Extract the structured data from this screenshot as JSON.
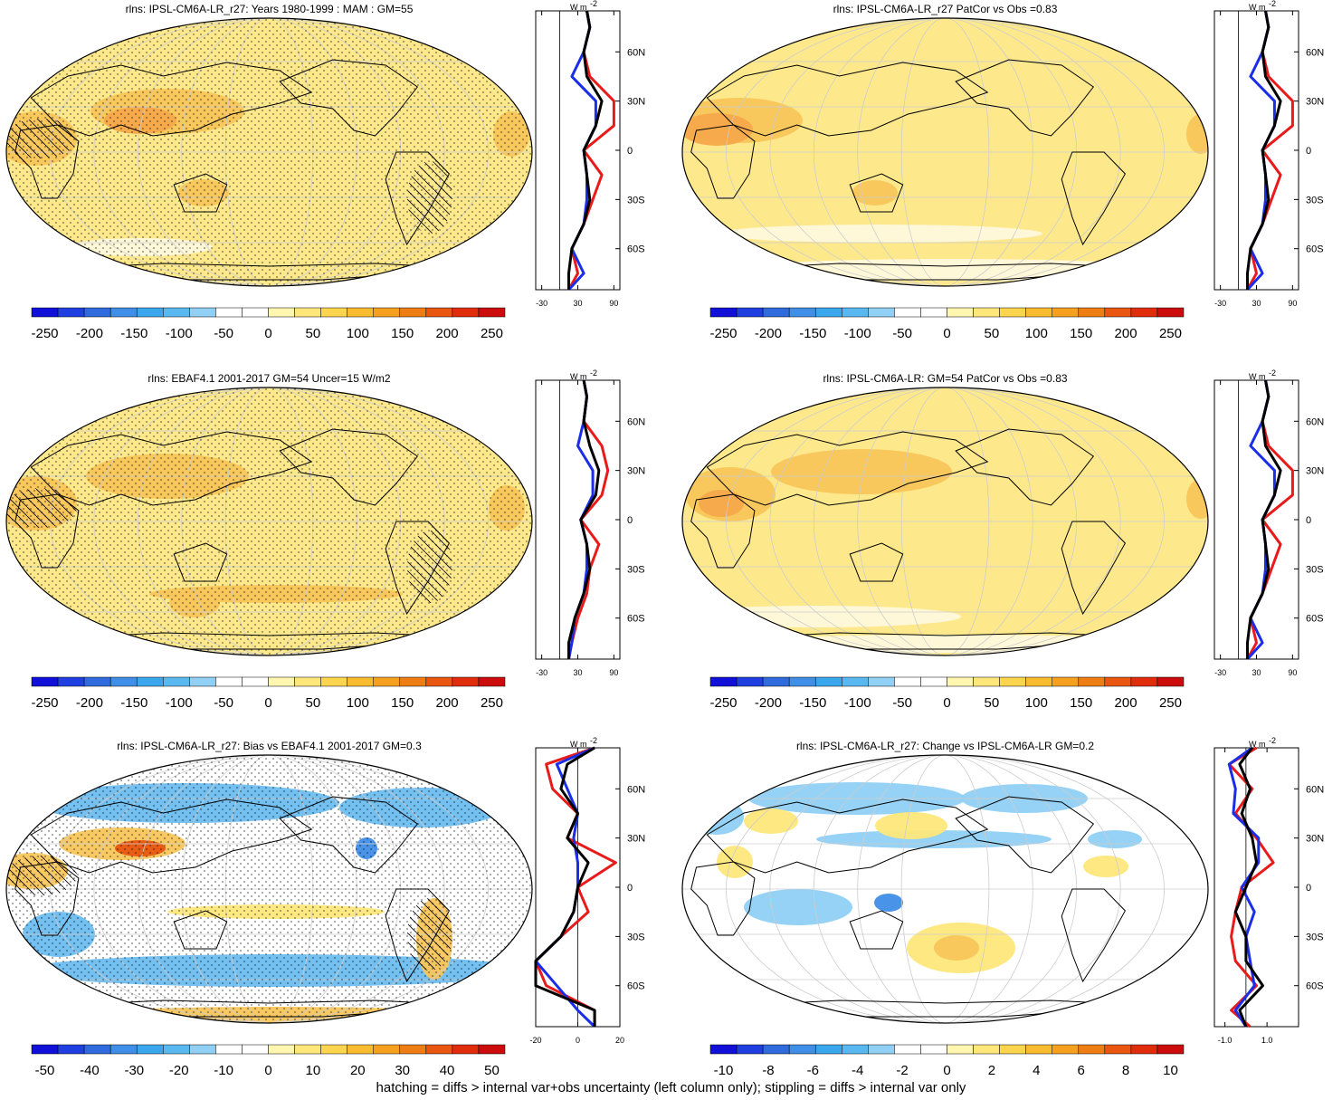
{
  "footer": "hatching = diffs > internal var+obs uncertainty (left column only); stippling = diffs > internal var only",
  "colors": {
    "model_line": "#000000",
    "obs_line": "#e81a1a",
    "ref_line": "#1a2ee8",
    "levels_abs": [
      "#1010d8",
      "#1f3fe0",
      "#2f6bdc",
      "#3f8ee8",
      "#3aa6ec",
      "#58b8ef",
      "#8fd0f4",
      "#ffffff",
      "#ffffff",
      "#fff6b0",
      "#fde77a",
      "#fcd44e",
      "#f9bb2f",
      "#f5a01e",
      "#ee7d14",
      "#e8560f",
      "#e02c0b",
      "#cc0c0c"
    ],
    "levels_bias": [
      "#1010d8",
      "#1f3fe0",
      "#2f6bdc",
      "#3f8ee8",
      "#3aa6ec",
      "#58b8ef",
      "#8fd0f4",
      "#ffffff",
      "#ffffff",
      "#fff6b0",
      "#fde77a",
      "#fcd44e",
      "#f9bb2f",
      "#f5a01e",
      "#ee7d14",
      "#e8560f",
      "#e02c0b",
      "#cc0c0c"
    ]
  },
  "panels": [
    {
      "id": "a",
      "title": "rlns: IPSL-CM6A-LR_r27: Years 1980-1999 : MAM : GM=55",
      "cbar_labels": [
        "-250",
        "-200",
        "-150",
        "-100",
        "-50",
        "0",
        "50",
        "100",
        "150",
        "200",
        "250"
      ],
      "zonal_ticks": [
        "-30",
        "30",
        "90"
      ],
      "zonal_unit": "W m",
      "zonal_unit_sup": "-2",
      "lat_labels": [
        "60N",
        "30N",
        "0",
        "30S",
        "60S"
      ]
    },
    {
      "id": "b",
      "title": "rlns: IPSL-CM6A-LR_r27 PatCor vs Obs =0.83",
      "cbar_labels": [
        "-250",
        "-200",
        "-150",
        "-100",
        "-50",
        "0",
        "50",
        "100",
        "150",
        "200",
        "250"
      ],
      "zonal_ticks": [
        "-30",
        "30",
        "90"
      ],
      "zonal_unit": "W m",
      "zonal_unit_sup": "-2",
      "lat_labels": [
        "60N",
        "30N",
        "0",
        "30S",
        "60S"
      ]
    },
    {
      "id": "c",
      "title": "rlns: EBAF4.1 2001-2017 GM=54 Uncer=15 W/m2",
      "cbar_labels": [
        "-250",
        "-200",
        "-150",
        "-100",
        "-50",
        "0",
        "50",
        "100",
        "150",
        "200",
        "250"
      ],
      "zonal_ticks": [
        "-30",
        "30",
        "90"
      ],
      "zonal_unit": "W m",
      "zonal_unit_sup": "-2",
      "lat_labels": [
        "60N",
        "30N",
        "0",
        "30S",
        "60S"
      ]
    },
    {
      "id": "d",
      "title": "rlns: IPSL-CM6A-LR: GM=54 PatCor vs Obs =0.83",
      "cbar_labels": [
        "-250",
        "-200",
        "-150",
        "-100",
        "-50",
        "0",
        "50",
        "100",
        "150",
        "200",
        "250"
      ],
      "zonal_ticks": [
        "-30",
        "30",
        "90"
      ],
      "zonal_unit": "W m",
      "zonal_unit_sup": "-2",
      "lat_labels": [
        "60N",
        "30N",
        "0",
        "30S",
        "60S"
      ]
    },
    {
      "id": "e",
      "title": "rlns: IPSL-CM6A-LR_r27: Bias vs EBAF4.1 2001-2017 GM=0.3",
      "cbar_labels": [
        "-50",
        "-40",
        "-30",
        "-20",
        "-10",
        "0",
        "10",
        "20",
        "30",
        "40",
        "50"
      ],
      "zonal_ticks": [
        "-20",
        "0",
        "20"
      ],
      "zonal_unit": "W m",
      "zonal_unit_sup": "-2",
      "lat_labels": [
        "60N",
        "30N",
        "0",
        "30S",
        "60S"
      ]
    },
    {
      "id": "f",
      "title": "rlns: IPSL-CM6A-LR_r27: Change vs IPSL-CM6A-LR GM=0.2",
      "cbar_labels": [
        "-10",
        "-8",
        "-6",
        "-4",
        "-2",
        "0",
        "2",
        "4",
        "6",
        "8",
        "10"
      ],
      "zonal_ticks": [
        "-1.0",
        "1.0"
      ],
      "zonal_unit": "W m",
      "zonal_unit_sup": "-2",
      "lat_labels": [
        "60N",
        "30N",
        "0",
        "30S",
        "60S"
      ]
    }
  ],
  "chart_data": [
    {
      "type": "heatmap",
      "title": "rlns: IPSL-CM6A-LR_r27: Years 1980-1999 : MAM : GM=55",
      "colorbar": [
        -250,
        -200,
        -150,
        -100,
        -50,
        0,
        50,
        100,
        150,
        200,
        250
      ],
      "zonal_mean": {
        "lat": [
          85,
          75,
          60,
          45,
          30,
          15,
          0,
          -15,
          -30,
          -45,
          -60,
          -75,
          -85
        ],
        "model": [
          45,
          50,
          40,
          45,
          70,
          60,
          40,
          45,
          50,
          40,
          20,
          15,
          15
        ],
        "obs": [
          45,
          50,
          40,
          50,
          90,
          90,
          40,
          70,
          55,
          40,
          20,
          30,
          15
        ],
        "ref": [
          45,
          50,
          40,
          20,
          60,
          60,
          40,
          45,
          45,
          40,
          20,
          40,
          15
        ]
      }
    },
    {
      "type": "heatmap",
      "title": "rlns: IPSL-CM6A-LR_r27 PatCor vs Obs =0.83",
      "colorbar": [
        -250,
        -200,
        -150,
        -100,
        -50,
        0,
        50,
        100,
        150,
        200,
        250
      ],
      "zonal_mean": {
        "lat": [
          85,
          75,
          60,
          45,
          30,
          15,
          0,
          -15,
          -30,
          -45,
          -60,
          -75,
          -85
        ],
        "model": [
          45,
          50,
          40,
          45,
          70,
          60,
          40,
          45,
          50,
          40,
          20,
          15,
          15
        ],
        "obs": [
          45,
          50,
          40,
          50,
          90,
          90,
          40,
          70,
          55,
          40,
          20,
          30,
          15
        ],
        "ref": [
          45,
          50,
          40,
          20,
          60,
          60,
          40,
          45,
          45,
          40,
          20,
          40,
          15
        ]
      }
    },
    {
      "type": "heatmap",
      "title": "rlns: EBAF4.1 2001-2017 GM=54 Uncer=15 W/m2",
      "colorbar": [
        -250,
        -200,
        -150,
        -100,
        -50,
        0,
        50,
        100,
        150,
        200,
        250
      ],
      "zonal_mean": {
        "lat": [
          85,
          75,
          60,
          45,
          30,
          15,
          0,
          -15,
          -30,
          -45,
          -60,
          -75,
          -85
        ],
        "model": [
          40,
          45,
          40,
          50,
          65,
          60,
          35,
          45,
          50,
          40,
          25,
          15,
          15
        ],
        "obs": [
          40,
          45,
          40,
          70,
          80,
          70,
          35,
          65,
          50,
          45,
          30,
          20,
          15
        ],
        "ref": [
          40,
          45,
          40,
          30,
          55,
          55,
          35,
          45,
          45,
          40,
          25,
          20,
          15
        ]
      }
    },
    {
      "type": "heatmap",
      "title": "rlns: IPSL-CM6A-LR: GM=54 PatCor vs Obs =0.83",
      "colorbar": [
        -250,
        -200,
        -150,
        -100,
        -50,
        0,
        50,
        100,
        150,
        200,
        250
      ],
      "zonal_mean": {
        "lat": [
          85,
          75,
          60,
          45,
          30,
          15,
          0,
          -15,
          -30,
          -45,
          -60,
          -75,
          -85
        ],
        "model": [
          45,
          50,
          40,
          45,
          70,
          60,
          40,
          45,
          50,
          40,
          20,
          15,
          15
        ],
        "obs": [
          45,
          50,
          40,
          50,
          90,
          90,
          40,
          70,
          55,
          40,
          20,
          30,
          15
        ],
        "ref": [
          45,
          50,
          40,
          20,
          60,
          60,
          40,
          45,
          45,
          40,
          20,
          40,
          15
        ]
      }
    },
    {
      "type": "heatmap",
      "title": "rlns: IPSL-CM6A-LR_r27: Bias vs EBAF4.1 2001-2017 GM=0.3",
      "colorbar": [
        -50,
        -40,
        -30,
        -20,
        -10,
        0,
        10,
        20,
        30,
        40,
        50
      ],
      "zonal_mean": {
        "lat": [
          85,
          75,
          60,
          45,
          30,
          15,
          0,
          -15,
          -30,
          -45,
          -60,
          -75,
          -85
        ],
        "model": [
          8,
          -5,
          -8,
          0,
          -5,
          5,
          0,
          -2,
          -8,
          -20,
          -20,
          8,
          8
        ],
        "obs": [
          8,
          -15,
          -12,
          0,
          -5,
          18,
          0,
          5,
          -8,
          -20,
          -15,
          8,
          8
        ],
        "ref": [
          8,
          -10,
          -5,
          0,
          -2,
          0,
          0,
          -2,
          -8,
          -20,
          -10,
          0,
          8
        ]
      }
    },
    {
      "type": "heatmap",
      "title": "rlns: IPSL-CM6A-LR_r27: Change vs IPSL-CM6A-LR GM=0.2",
      "colorbar": [
        -10,
        -8,
        -6,
        -4,
        -2,
        0,
        2,
        4,
        6,
        8,
        10
      ],
      "zonal_mean": {
        "lat": [
          85,
          75,
          60,
          45,
          30,
          15,
          0,
          -15,
          -30,
          -45,
          -60,
          -75,
          -85
        ],
        "model": [
          0.3,
          -0.3,
          0.2,
          -0.2,
          0.3,
          0.5,
          0.0,
          -0.5,
          0.0,
          0.0,
          0.8,
          -0.3,
          0.0
        ],
        "obs": [
          0.5,
          -0.8,
          0.3,
          -0.5,
          0.5,
          1.3,
          -0.2,
          -0.5,
          -0.7,
          -0.5,
          0.5,
          -0.7,
          0.2
        ],
        "ref": [
          0.3,
          -0.8,
          -0.5,
          -0.6,
          0.6,
          0.6,
          -0.2,
          0.4,
          0.0,
          0.2,
          0.4,
          -0.5,
          0.0
        ]
      }
    }
  ]
}
